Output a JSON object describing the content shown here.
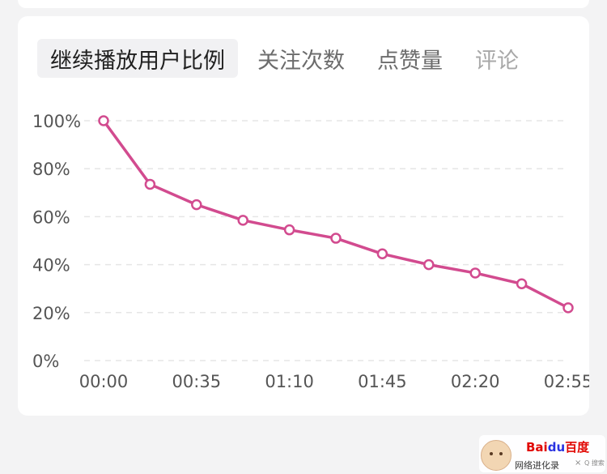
{
  "tabs": [
    {
      "label": "继续播放用户比例",
      "active": true
    },
    {
      "label": "关注次数",
      "active": false
    },
    {
      "label": "点赞量",
      "active": false
    },
    {
      "label": "评论",
      "active": false
    }
  ],
  "chart_data": {
    "type": "line",
    "title": "",
    "xlabel": "",
    "ylabel": "",
    "x": [
      "00:00",
      "00:17",
      "00:35",
      "00:52",
      "01:10",
      "01:27",
      "01:45",
      "02:02",
      "02:20",
      "02:37",
      "02:55"
    ],
    "x_tick_labels": [
      "00:00",
      "00:35",
      "01:10",
      "01:45",
      "02:20",
      "02:55"
    ],
    "y_tick_labels": [
      "100%",
      "80%",
      "60%",
      "40%",
      "20%",
      "0%"
    ],
    "ylim": [
      0,
      100
    ],
    "grid": true,
    "series": [
      {
        "values": [
          100,
          73.5,
          65,
          58.5,
          54.5,
          51,
          44.5,
          40,
          36.5,
          32,
          22
        ]
      }
    ],
    "colors": {
      "line": "#d24b8f",
      "grid": "#e6e6e6",
      "tick_text": "#555555"
    }
  },
  "watermark": {
    "logo_text": "Bai",
    "logo_du": "du",
    "logo_cn": "百度",
    "caption": "网络进化录",
    "close_glyph": "×",
    "search_glyph": "Q 搜索"
  }
}
